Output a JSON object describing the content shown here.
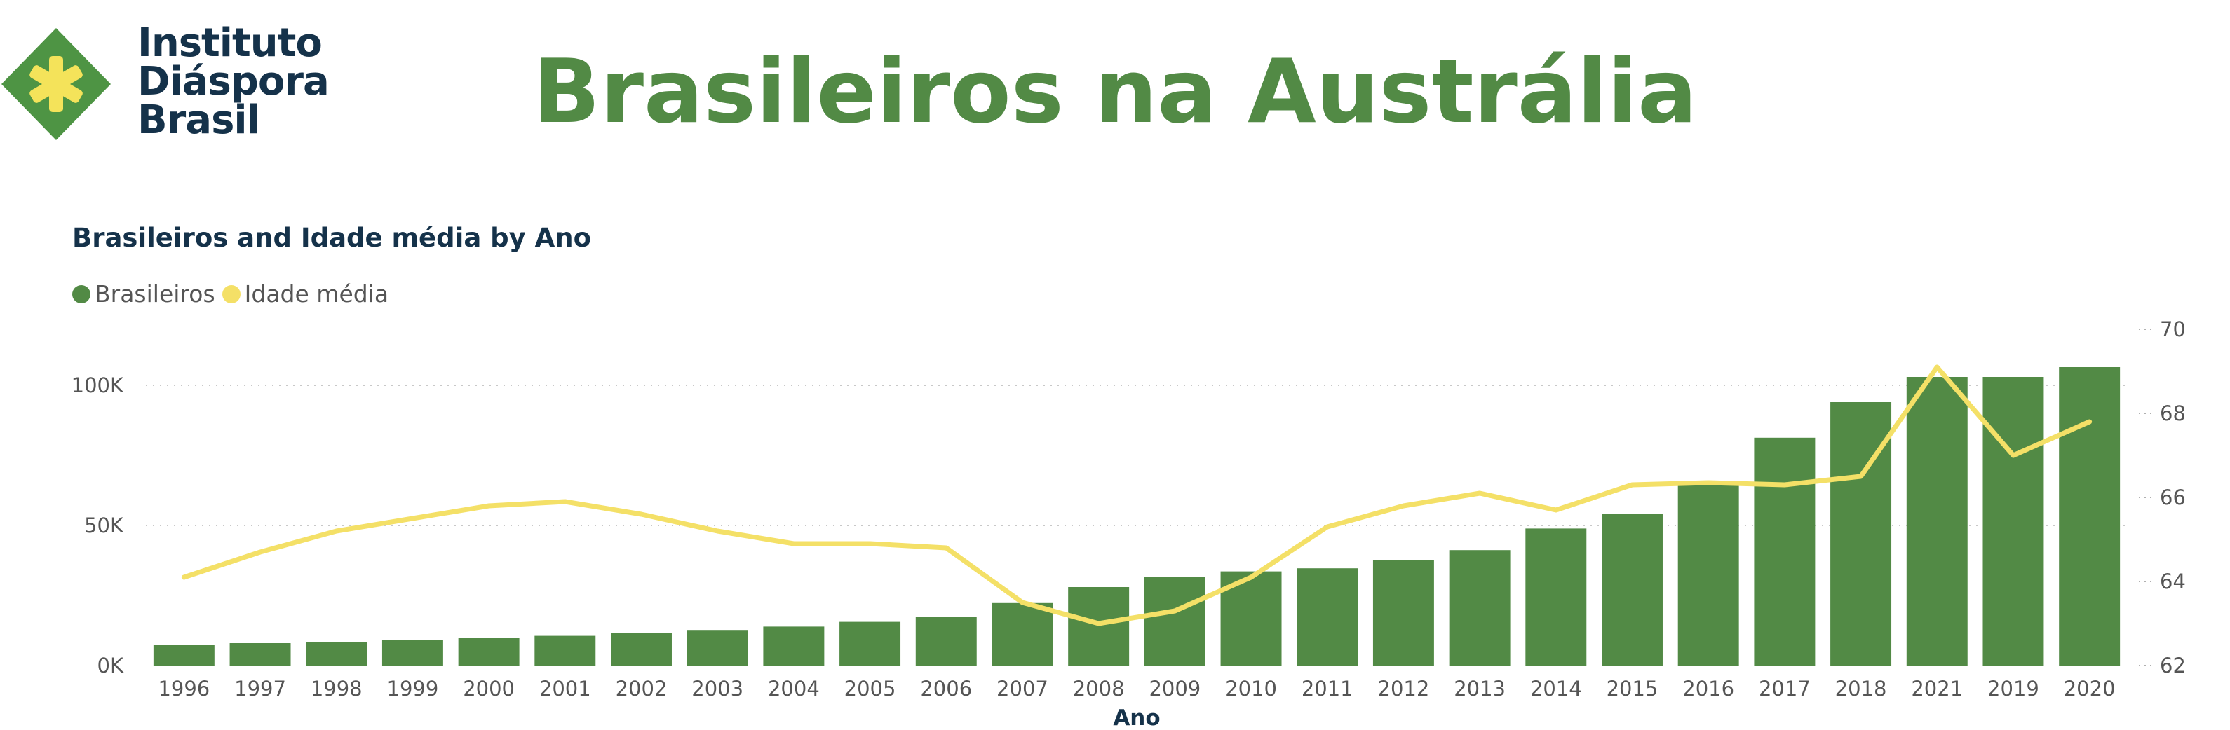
{
  "logo": {
    "lines": [
      "Instituto",
      "Diáspora",
      "Brasil"
    ],
    "mark_color": "#4e9444",
    "star_color": "#f4e35a"
  },
  "header": {
    "title": "Brasileiros na Austrália"
  },
  "chart_data": {
    "type": "bar+line",
    "title": "Brasileiros and Idade média by Ano",
    "xlabel": "Ano",
    "categories": [
      "1996",
      "1997",
      "1998",
      "1999",
      "2000",
      "2001",
      "2002",
      "2003",
      "2004",
      "2005",
      "2006",
      "2007",
      "2008",
      "2009",
      "2010",
      "2011",
      "2012",
      "2013",
      "2014",
      "2015",
      "2016",
      "2017",
      "2018",
      "2021",
      "2019",
      "2020"
    ],
    "series": [
      {
        "name": "Brasileiros",
        "type": "bar",
        "axis": "left",
        "color": "#528a45",
        "values": [
          7500,
          8000,
          8400,
          9000,
          9800,
          10600,
          11600,
          12700,
          13900,
          15600,
          17300,
          22300,
          28000,
          31700,
          33600,
          34700,
          37600,
          41200,
          48900,
          54000,
          66000,
          81300,
          94000,
          103000,
          103000,
          106500
        ]
      },
      {
        "name": "Idade média",
        "type": "line",
        "axis": "right",
        "color": "#f4e067",
        "values": [
          64.1,
          64.7,
          65.2,
          65.5,
          65.8,
          65.9,
          65.6,
          65.2,
          64.9,
          64.9,
          64.8,
          63.5,
          63.0,
          63.3,
          64.1,
          65.3,
          65.8,
          66.1,
          65.7,
          66.3,
          66.35,
          66.3,
          66.5,
          69.1,
          67.0,
          67.8
        ]
      }
    ],
    "y_left": {
      "range": [
        0,
        120000
      ],
      "ticks": [
        0,
        50000,
        100000
      ],
      "tick_labels": [
        "0K",
        "50K",
        "100K"
      ]
    },
    "y_right": {
      "range": [
        62,
        70
      ],
      "ticks": [
        62,
        64,
        66,
        68,
        70
      ],
      "tick_labels": [
        "62",
        "64",
        "66",
        "68",
        "70"
      ]
    },
    "legend": [
      "Brasileiros",
      "Idade média"
    ],
    "legend_position": "top-left",
    "gridlines": "dotted-horizontal"
  }
}
